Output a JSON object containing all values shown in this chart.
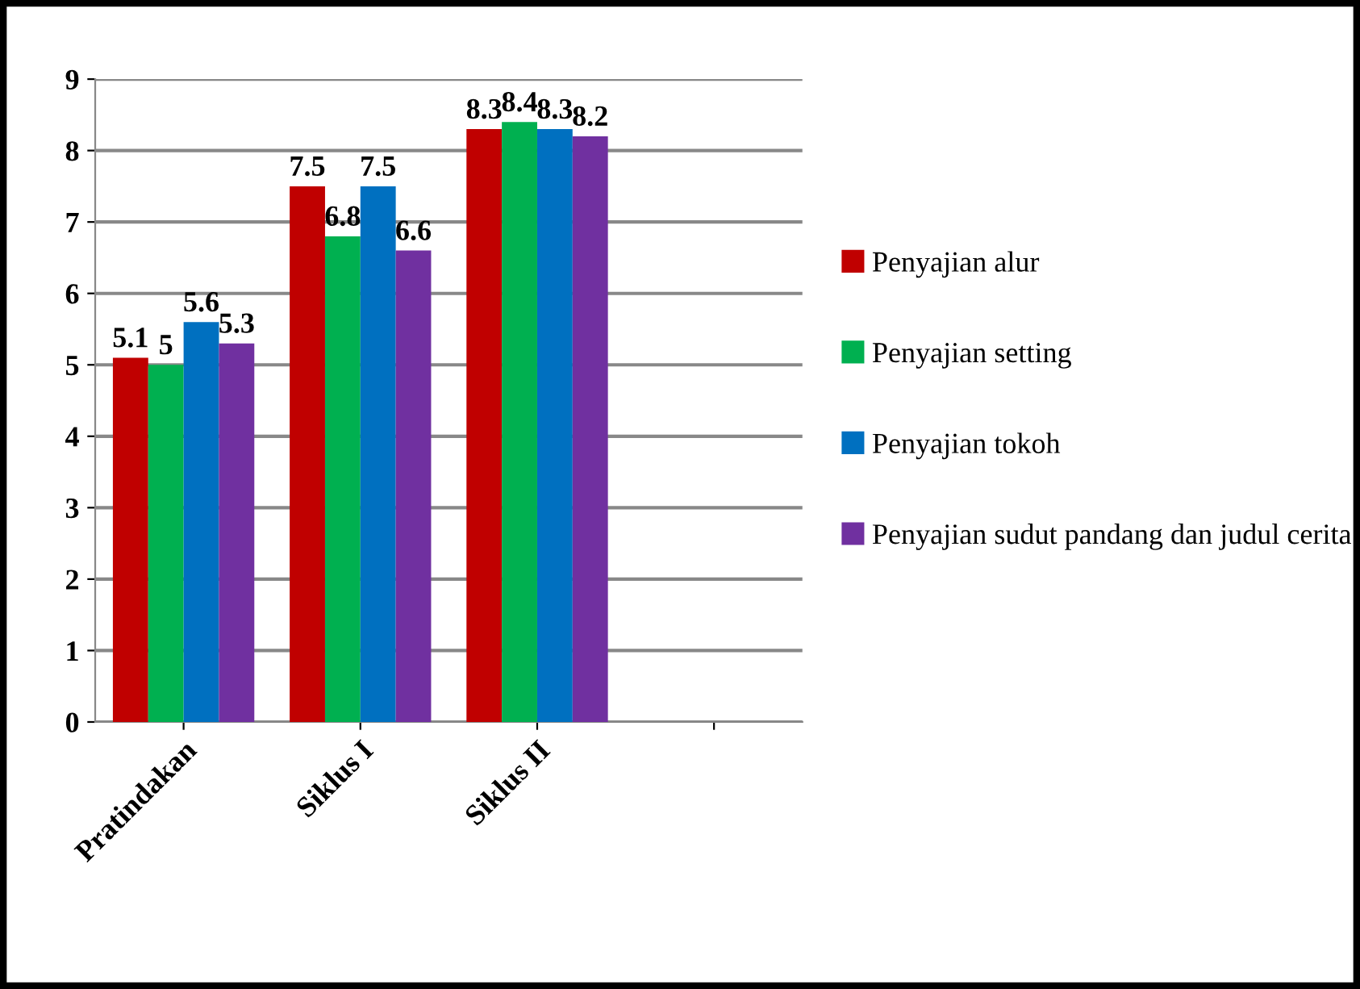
{
  "chart_data": {
    "type": "bar",
    "categories": [
      "Pratindakan",
      "Siklus I",
      "Siklus II",
      null
    ],
    "series": [
      {
        "name": "Penyajian alur",
        "color": "#c00000",
        "values": [
          5.1,
          7.5,
          8.3,
          null
        ]
      },
      {
        "name": "Penyajian setting",
        "color": "#00b050",
        "values": [
          5,
          6.8,
          8.4,
          null
        ]
      },
      {
        "name": "Penyajian tokoh",
        "color": "#0070c0",
        "values": [
          5.6,
          7.5,
          8.3,
          null
        ]
      },
      {
        "name": "Penyajian sudut pandang dan judul cerita",
        "color": "#7030a0",
        "values": [
          5.3,
          6.6,
          8.2,
          null
        ]
      }
    ],
    "ylim": [
      0,
      9
    ],
    "yticks": [
      0,
      1,
      2,
      3,
      4,
      5,
      6,
      7,
      8,
      9
    ],
    "grid": "y",
    "legend": "right",
    "data_labels": true
  }
}
